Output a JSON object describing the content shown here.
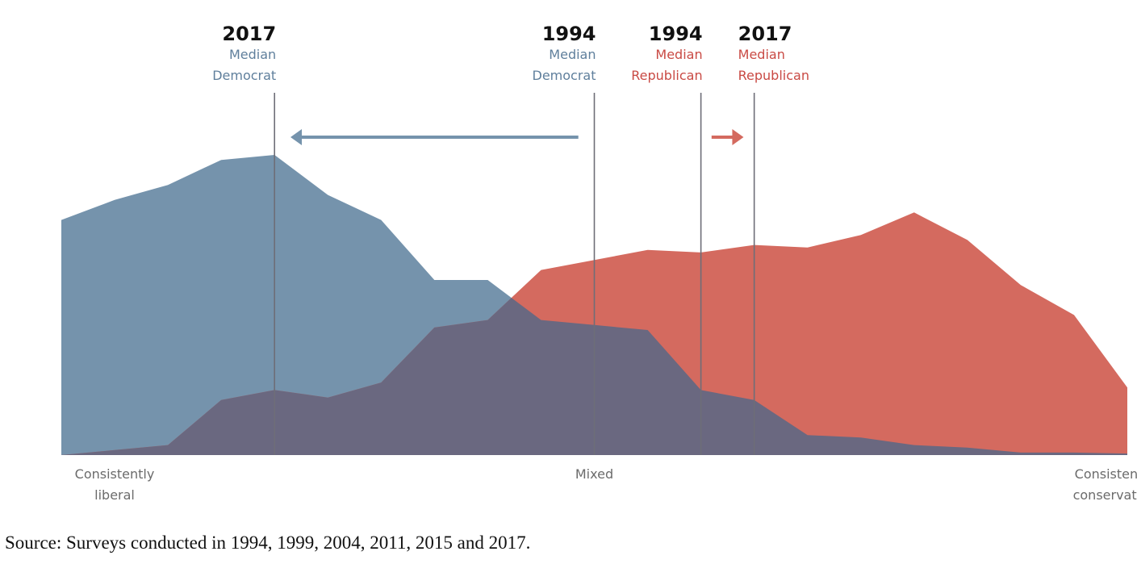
{
  "source_note": "Source: Surveys conducted in 1994, 1999, 2004, 2011, 2015 and 2017.",
  "colors": {
    "democrat": "#7593ac",
    "republican": "#d46a5f",
    "overlap": "#6a6880",
    "democrat_label": "#5f7f9c",
    "republican_label": "#c94a44",
    "median_line": "#6e6e78"
  },
  "chart_data": {
    "type": "area",
    "xlim": [
      0,
      20
    ],
    "ylim": [
      0,
      60
    ],
    "x_ticks": [
      {
        "x": 0,
        "lines": [
          "Consistently",
          "liberal"
        ]
      },
      {
        "x": 10,
        "lines": [
          "Mixed"
        ]
      },
      {
        "x": 20,
        "lines": [
          "Consistently",
          "conservative"
        ]
      }
    ],
    "x": [
      0,
      1,
      2,
      3,
      4,
      5,
      6,
      7,
      8,
      9,
      10,
      11,
      12,
      13,
      14,
      15,
      16,
      17,
      18,
      19,
      20
    ],
    "series": [
      {
        "key": "democrat",
        "values": [
          47,
          51,
          54,
          59,
          60,
          52,
          47,
          35,
          35,
          27,
          26,
          25,
          13,
          11,
          4,
          3.5,
          2,
          1.5,
          0.5,
          0.5,
          0.3
        ]
      },
      {
        "key": "republican",
        "values": [
          0,
          1,
          2,
          11,
          13,
          11.5,
          14.5,
          25.5,
          27,
          37,
          39,
          41,
          40.5,
          42,
          41.5,
          44,
          48.5,
          43,
          34,
          28,
          13.5
        ]
      }
    ],
    "medians": [
      {
        "year": "2017",
        "lines": [
          "Median",
          "Democrat"
        ],
        "x": 4,
        "party": "democrat",
        "label_anchor": "end"
      },
      {
        "year": "1994",
        "lines": [
          "Median",
          "Democrat"
        ],
        "x": 10,
        "party": "democrat",
        "label_anchor": "end"
      },
      {
        "year": "1994",
        "lines": [
          "Median",
          "Republican"
        ],
        "x": 12,
        "party": "republican",
        "label_anchor": "end"
      },
      {
        "year": "2017",
        "lines": [
          "Median",
          "Republican"
        ],
        "x": 13,
        "party": "republican",
        "label_anchor": "start"
      }
    ],
    "shift_arrows": [
      {
        "party": "democrat",
        "from": 9.7,
        "to": 4.3
      },
      {
        "party": "republican",
        "from": 12.2,
        "to": 12.8
      }
    ]
  }
}
